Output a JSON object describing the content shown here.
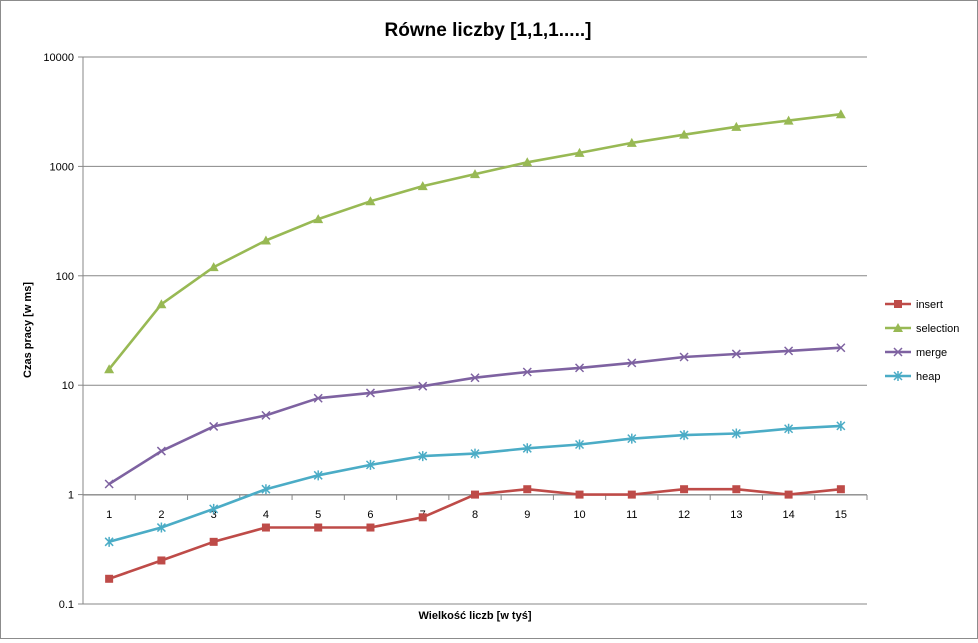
{
  "chart_data": {
    "type": "line",
    "title": "Równe liczby [1,1,1.....]",
    "xlabel": "Wielkość liczb [w tyś]",
    "ylabel": "Czas pracy [w ms]",
    "yscale": "log",
    "ylim": [
      0.1,
      10000
    ],
    "grid": true,
    "legend_position": "right",
    "x": [
      1,
      2,
      3,
      4,
      5,
      6,
      7,
      8,
      9,
      10,
      11,
      12,
      13,
      14,
      15
    ],
    "x_tick_labels": [
      "1",
      "2",
      "3",
      "4",
      "5",
      "6",
      "7",
      "8",
      "9",
      "10",
      "11",
      "12",
      "13",
      "14",
      "15"
    ],
    "y_tick_labels": [
      "0.1",
      "1",
      "10",
      "100",
      "1000",
      "10000"
    ],
    "y_ticks": [
      0.1,
      1,
      10,
      100,
      1000,
      10000
    ],
    "series": [
      {
        "name": "insert",
        "color": "#be4b48",
        "marker": "square",
        "values": [
          0.17,
          0.25,
          0.37,
          0.5,
          0.5,
          0.5,
          0.62,
          1,
          1.12,
          1,
          1,
          1.12,
          1.12,
          1,
          1.12
        ]
      },
      {
        "name": "selection",
        "color": "#98b954",
        "marker": "triangle",
        "values": [
          14,
          55,
          120,
          210,
          330,
          480,
          660,
          850,
          1090,
          1330,
          1640,
          1950,
          2300,
          2620,
          3000
        ]
      },
      {
        "name": "merge",
        "color": "#7e62a1",
        "marker": "x",
        "values": [
          1.25,
          2.5,
          4.2,
          5.3,
          7.6,
          8.5,
          9.8,
          11.7,
          13.2,
          14.4,
          16,
          18.1,
          19.3,
          20.6,
          22
        ]
      },
      {
        "name": "heap",
        "color": "#4bacc6",
        "marker": "star",
        "values": [
          0.37,
          0.5,
          0.74,
          1.12,
          1.5,
          1.87,
          2.25,
          2.37,
          2.65,
          2.87,
          3.25,
          3.5,
          3.62,
          4,
          4.25
        ]
      }
    ]
  }
}
